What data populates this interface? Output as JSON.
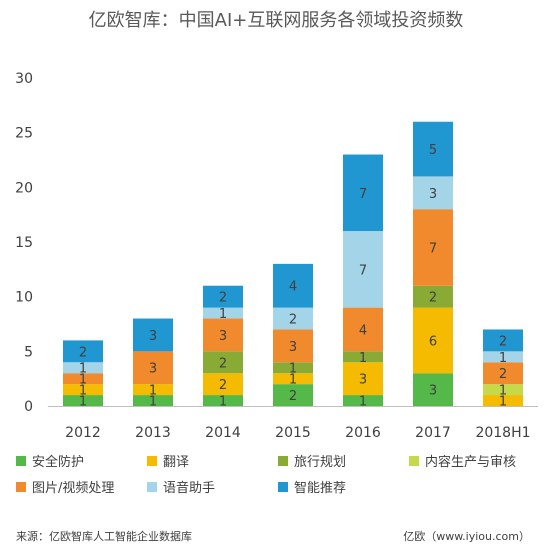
{
  "title": "亿欧智库：中国AI+互联网服务各领域投资频数",
  "footer": {
    "source": "来源：亿欧智库人工智能企业数据库",
    "site": "亿欧（www.iyiou.com）"
  },
  "chart_data": {
    "type": "bar",
    "stacked": true,
    "categories": [
      "2012",
      "2013",
      "2014",
      "2015",
      "2016",
      "2017",
      "2018H1"
    ],
    "ylim": [
      0,
      30
    ],
    "yticks": [
      0,
      5,
      10,
      15,
      20,
      25,
      30
    ],
    "grid": false,
    "legend_position": "bottom",
    "series": [
      {
        "name": "安全防护",
        "color": "#54b948",
        "values": [
          1,
          1,
          1,
          2,
          1,
          3,
          0
        ]
      },
      {
        "name": "翻译",
        "color": "#f5bb00",
        "values": [
          1,
          1,
          2,
          1,
          3,
          6,
          1
        ]
      },
      {
        "name": "旅行规划",
        "color": "#8aaa36",
        "values": [
          0,
          0,
          2,
          1,
          1,
          2,
          0
        ]
      },
      {
        "name": "内容生产与审核",
        "color": "#c5d94a",
        "values": [
          0,
          0,
          0,
          0,
          0,
          0,
          1
        ]
      },
      {
        "name": "图片/视频处理",
        "color": "#f08a2c",
        "values": [
          1,
          3,
          3,
          3,
          4,
          7,
          2
        ]
      },
      {
        "name": "语音助手",
        "color": "#a3d4e8",
        "values": [
          1,
          0,
          1,
          2,
          7,
          3,
          1
        ]
      },
      {
        "name": "智能推荐",
        "color": "#2097d0",
        "values": [
          2,
          3,
          2,
          4,
          7,
          5,
          2
        ]
      }
    ]
  }
}
